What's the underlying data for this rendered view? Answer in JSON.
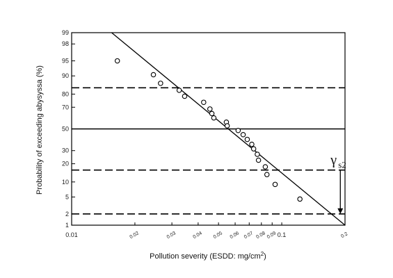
{
  "chart_data": {
    "type": "scatter",
    "title": "",
    "xlabel_main": "Pollution severity (ESDD: mg/cm",
    "xlabel_sup": "2",
    "xlabel_end": ")",
    "ylabel": "Probability of exceeding abysyssa (%)",
    "x_scale": "log",
    "y_scale": "normal-probability",
    "xlim": [
      0.01,
      0.2
    ],
    "ylim": [
      1,
      99
    ],
    "x_ticks": [
      "0.01",
      "0.02",
      "0.03",
      "0.04",
      "0.05",
      "0.06",
      "0.07",
      "0.08",
      "0.09",
      "0.1",
      "0.2"
    ],
    "x_tick_values": [
      0.01,
      0.02,
      0.03,
      0.04,
      0.05,
      0.06,
      0.07,
      0.08,
      0.09,
      0.1,
      0.2
    ],
    "y_ticks": [
      "1",
      "2",
      "5",
      "10",
      "20",
      "30",
      "50",
      "70",
      "80",
      "90",
      "95",
      "98",
      "99"
    ],
    "y_tick_values": [
      1,
      2,
      5,
      10,
      20,
      30,
      50,
      70,
      80,
      90,
      95,
      98,
      99
    ],
    "points": [
      {
        "x": 0.0165,
        "y": 95
      },
      {
        "x": 0.0245,
        "y": 90.5
      },
      {
        "x": 0.0265,
        "y": 86.5
      },
      {
        "x": 0.0325,
        "y": 82.5
      },
      {
        "x": 0.0345,
        "y": 78.5
      },
      {
        "x": 0.0425,
        "y": 74
      },
      {
        "x": 0.0455,
        "y": 68.5
      },
      {
        "x": 0.0465,
        "y": 64.5
      },
      {
        "x": 0.0475,
        "y": 60.5
      },
      {
        "x": 0.0545,
        "y": 56.5
      },
      {
        "x": 0.055,
        "y": 53
      },
      {
        "x": 0.062,
        "y": 48.5
      },
      {
        "x": 0.0655,
        "y": 44.5
      },
      {
        "x": 0.0685,
        "y": 40
      },
      {
        "x": 0.072,
        "y": 35.5
      },
      {
        "x": 0.0735,
        "y": 31.5
      },
      {
        "x": 0.0765,
        "y": 27
      },
      {
        "x": 0.0775,
        "y": 22.5
      },
      {
        "x": 0.0835,
        "y": 18
      },
      {
        "x": 0.085,
        "y": 13.5
      },
      {
        "x": 0.093,
        "y": 9
      },
      {
        "x": 0.122,
        "y": 4.5
      }
    ],
    "fit_line": [
      {
        "x": 0.0155,
        "y": 99
      },
      {
        "x": 0.2,
        "y": 1
      }
    ],
    "reference_lines": [
      {
        "y": 84,
        "style": "dashed"
      },
      {
        "y": 50,
        "style": "solid"
      },
      {
        "y": 16,
        "style": "dashed"
      },
      {
        "y": 2,
        "style": "dashed"
      }
    ],
    "annotation": {
      "symbol": "γ",
      "subscript": "s2",
      "arrow_x": 0.19,
      "arrow_from_y": 16,
      "arrow_to_y": 2
    },
    "grid": false,
    "legend": "none"
  }
}
